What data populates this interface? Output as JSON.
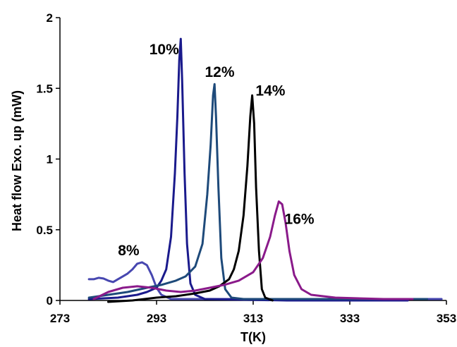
{
  "chart_data": {
    "type": "line",
    "xlabel": "T(K)",
    "ylabel": "Heat flow Exo. up (mW)",
    "xlim": [
      273,
      353
    ],
    "ylim": [
      0,
      2
    ],
    "x_ticks": [
      "273",
      "293",
      "313",
      "333",
      "353"
    ],
    "y_ticks": [
      "0",
      "0.5",
      "1",
      "1.5",
      "2"
    ],
    "grid": false,
    "legend": "none",
    "series": [
      {
        "name": "8%",
        "color": "#4747b0",
        "label_pos": [
          285,
          0.32
        ],
        "points": [
          [
            279,
            0.15
          ],
          [
            280,
            0.15
          ],
          [
            281,
            0.16
          ],
          [
            282,
            0.155
          ],
          [
            283,
            0.14
          ],
          [
            284,
            0.13
          ],
          [
            285,
            0.15
          ],
          [
            286,
            0.17
          ],
          [
            287,
            0.19
          ],
          [
            288,
            0.22
          ],
          [
            289,
            0.26
          ],
          [
            290,
            0.27
          ],
          [
            291,
            0.25
          ],
          [
            292,
            0.18
          ],
          [
            293,
            0.09
          ],
          [
            294,
            0.04
          ],
          [
            296,
            0.01
          ],
          [
            300,
            0.01
          ],
          [
            320,
            0.01
          ],
          [
            340,
            0.01
          ],
          [
            352,
            0.01
          ]
        ]
      },
      {
        "name": "10%",
        "color": "#1a1a8c",
        "label_pos": [
          291.5,
          1.74
        ],
        "points": [
          [
            279,
            0.01
          ],
          [
            285,
            0.02
          ],
          [
            289,
            0.04
          ],
          [
            291,
            0.06
          ],
          [
            293,
            0.09
          ],
          [
            294,
            0.14
          ],
          [
            295,
            0.22
          ],
          [
            296,
            0.45
          ],
          [
            296.8,
            0.9
          ],
          [
            297.3,
            1.3
          ],
          [
            297.7,
            1.7
          ],
          [
            298.0,
            1.85
          ],
          [
            298.3,
            1.55
          ],
          [
            298.8,
            0.9
          ],
          [
            299.3,
            0.4
          ],
          [
            300,
            0.12
          ],
          [
            301,
            0.04
          ],
          [
            303,
            0.01
          ],
          [
            320,
            0.0
          ],
          [
            345,
            0.0
          ]
        ]
      },
      {
        "name": "12%",
        "color": "#1e4a7a",
        "label_pos": [
          303,
          1.58
        ],
        "points": [
          [
            279,
            0.02
          ],
          [
            283,
            0.04
          ],
          [
            287,
            0.06
          ],
          [
            291,
            0.09
          ],
          [
            294,
            0.11
          ],
          [
            297,
            0.14
          ],
          [
            299,
            0.17
          ],
          [
            301,
            0.24
          ],
          [
            302.5,
            0.4
          ],
          [
            303.5,
            0.75
          ],
          [
            304.2,
            1.1
          ],
          [
            304.7,
            1.45
          ],
          [
            305.0,
            1.53
          ],
          [
            305.3,
            1.3
          ],
          [
            305.8,
            0.8
          ],
          [
            306.4,
            0.3
          ],
          [
            307.2,
            0.08
          ],
          [
            308.5,
            0.02
          ],
          [
            311,
            0.01
          ],
          [
            330,
            0.01
          ],
          [
            349,
            0.01
          ]
        ]
      },
      {
        "name": "14%",
        "color": "#000000",
        "label_pos": [
          313.5,
          1.45
        ],
        "points": [
          [
            283,
            -0.01
          ],
          [
            288,
            0.0
          ],
          [
            293,
            0.02
          ],
          [
            297,
            0.03
          ],
          [
            301,
            0.05
          ],
          [
            304,
            0.07
          ],
          [
            306,
            0.1
          ],
          [
            308,
            0.15
          ],
          [
            309,
            0.22
          ],
          [
            310,
            0.35
          ],
          [
            311,
            0.6
          ],
          [
            311.8,
            0.95
          ],
          [
            312.4,
            1.3
          ],
          [
            312.8,
            1.45
          ],
          [
            313.2,
            1.25
          ],
          [
            313.6,
            0.8
          ],
          [
            314.2,
            0.35
          ],
          [
            314.8,
            0.08
          ],
          [
            315.5,
            0.02
          ],
          [
            317,
            0.0
          ]
        ]
      },
      {
        "name": "16%",
        "color": "#8a1a8a",
        "label_pos": [
          319.5,
          0.54
        ],
        "points": [
          [
            280,
            0.01
          ],
          [
            283,
            0.06
          ],
          [
            286,
            0.09
          ],
          [
            289,
            0.1
          ],
          [
            292,
            0.09
          ],
          [
            295,
            0.07
          ],
          [
            298,
            0.06
          ],
          [
            301,
            0.07
          ],
          [
            304,
            0.09
          ],
          [
            307,
            0.11
          ],
          [
            310,
            0.14
          ],
          [
            313,
            0.2
          ],
          [
            315,
            0.3
          ],
          [
            316.5,
            0.45
          ],
          [
            317.5,
            0.6
          ],
          [
            318.3,
            0.7
          ],
          [
            319,
            0.68
          ],
          [
            319.7,
            0.55
          ],
          [
            320.5,
            0.35
          ],
          [
            321.5,
            0.18
          ],
          [
            323,
            0.08
          ],
          [
            325,
            0.04
          ],
          [
            330,
            0.02
          ],
          [
            340,
            0.01
          ],
          [
            346,
            0.01
          ]
        ]
      }
    ]
  }
}
